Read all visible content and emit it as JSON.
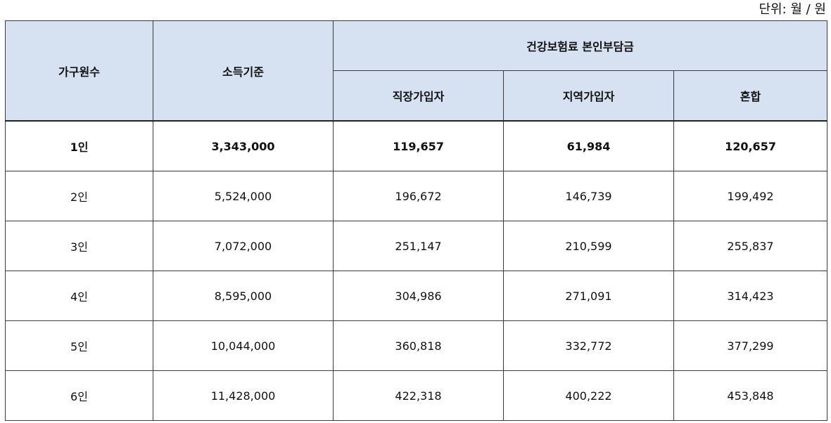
{
  "unit_note": "단위: 월 / 원",
  "table": {
    "headers": {
      "household": "가구원수",
      "income": "소득기준",
      "premium_group": "건강보험료 본인부담금",
      "employee": "직장가입자",
      "regional": "지역가입자",
      "mixed": "혼합"
    },
    "rows": [
      {
        "household": "1인",
        "income": "3,343,000",
        "employee": "119,657",
        "regional": "61,984",
        "mixed": "120,657"
      },
      {
        "household": "2인",
        "income": "5,524,000",
        "employee": "196,672",
        "regional": "146,739",
        "mixed": "199,492"
      },
      {
        "household": "3인",
        "income": "7,072,000",
        "employee": "251,147",
        "regional": "210,599",
        "mixed": "255,837"
      },
      {
        "household": "4인",
        "income": "8,595,000",
        "employee": "304,986",
        "regional": "271,091",
        "mixed": "314,423"
      },
      {
        "household": "5인",
        "income": "10,044,000",
        "employee": "360,818",
        "regional": "332,772",
        "mixed": "377,299"
      },
      {
        "household": "6인",
        "income": "11,428,000",
        "employee": "422,318",
        "regional": "400,222",
        "mixed": "453,848"
      }
    ]
  }
}
